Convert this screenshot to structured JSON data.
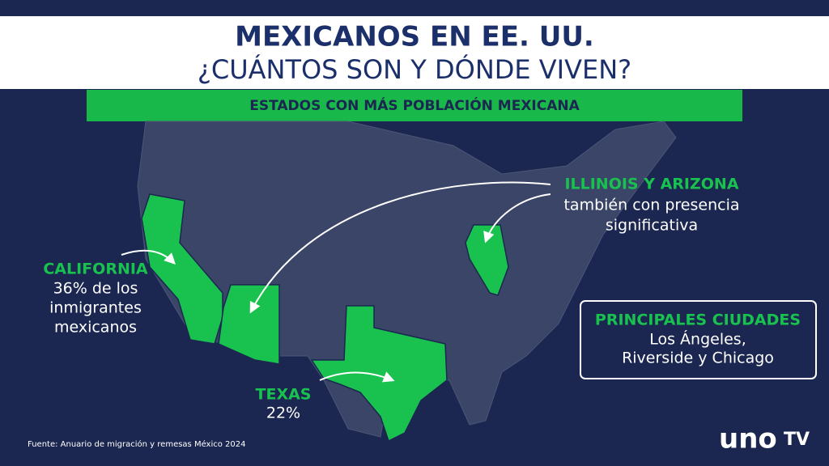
{
  "header": {
    "title_line1": "MEXICANOS EN EE. UU.",
    "title_line2": "¿CUÁNTOS SON Y DÓNDE VIVEN?"
  },
  "banner": "ESTADOS CON MÁS POBLACIÓN MEXICANA",
  "callouts": {
    "california": {
      "name": "CALIFORNIA",
      "lines": [
        "36% de los",
        "inmigrantes",
        "mexicanos"
      ]
    },
    "texas": {
      "name": "TEXAS",
      "lines": [
        "22%"
      ]
    },
    "illinois_arizona": {
      "name": "ILLINOIS Y ARIZONA",
      "lines": [
        "también con presencia",
        "significativa"
      ]
    }
  },
  "cities": {
    "title": "PRINCIPALES CIUDADES",
    "lines": [
      "Los Ángeles,",
      "Riverside y Chicago"
    ]
  },
  "source": "Fuente: Anuario de migración y remesas México 2024",
  "logo": {
    "main": "uno",
    "suffix": "TV"
  }
}
